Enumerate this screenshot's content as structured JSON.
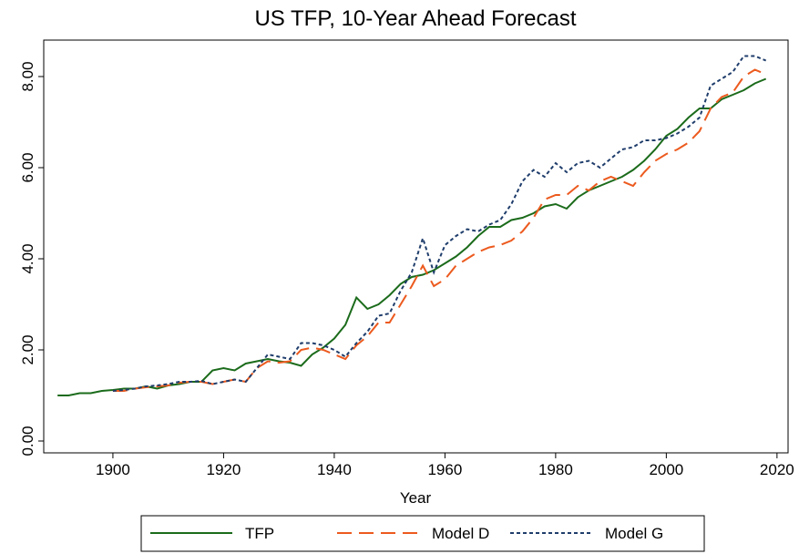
{
  "chart_data": {
    "type": "line",
    "title": "US TFP, 10-Year Ahead Forecast",
    "x_label": "Year",
    "x": [
      1890,
      1892,
      1894,
      1896,
      1898,
      1900,
      1902,
      1904,
      1906,
      1908,
      1910,
      1912,
      1914,
      1916,
      1918,
      1920,
      1922,
      1924,
      1926,
      1928,
      1930,
      1932,
      1934,
      1936,
      1938,
      1940,
      1942,
      1944,
      1946,
      1948,
      1950,
      1952,
      1954,
      1956,
      1958,
      1960,
      1962,
      1964,
      1966,
      1968,
      1970,
      1972,
      1974,
      1976,
      1978,
      1980,
      1982,
      1984,
      1986,
      1988,
      1990,
      1992,
      1994,
      1996,
      1998,
      2000,
      2002,
      2004,
      2006,
      2008,
      2010,
      2012,
      2014,
      2016,
      2018
    ],
    "series": [
      {
        "name": "TFP",
        "color": "#1b6b1b",
        "dash": "none",
        "values": [
          1.0,
          1.0,
          1.05,
          1.05,
          1.1,
          1.12,
          1.15,
          1.15,
          1.2,
          1.15,
          1.22,
          1.25,
          1.3,
          1.3,
          1.55,
          1.6,
          1.55,
          1.7,
          1.75,
          1.8,
          1.75,
          1.72,
          1.65,
          1.9,
          2.05,
          2.25,
          2.55,
          3.15,
          2.9,
          3.0,
          3.2,
          3.45,
          3.6,
          3.65,
          3.75,
          3.9,
          4.05,
          4.25,
          4.5,
          4.7,
          4.7,
          4.85,
          4.9,
          5.0,
          5.15,
          5.2,
          5.1,
          5.35,
          5.5,
          5.6,
          5.7,
          5.8,
          5.95,
          6.15,
          6.4,
          6.7,
          6.85,
          7.1,
          7.3,
          7.3,
          7.5,
          7.6,
          7.7,
          7.85,
          7.95
        ]
      },
      {
        "name": "Model D",
        "color": "#ec5a1e",
        "dash": "16,8",
        "values": [
          null,
          null,
          null,
          null,
          null,
          1.1,
          1.1,
          1.15,
          1.18,
          1.2,
          1.22,
          1.28,
          1.3,
          1.3,
          1.25,
          1.3,
          1.35,
          1.3,
          1.6,
          1.75,
          1.72,
          1.75,
          2.0,
          2.05,
          2.0,
          1.9,
          1.8,
          2.1,
          2.3,
          2.6,
          2.6,
          3.0,
          3.4,
          3.85,
          3.4,
          3.55,
          3.85,
          4.0,
          4.15,
          4.25,
          4.3,
          4.4,
          4.6,
          4.9,
          5.3,
          5.4,
          5.4,
          5.6,
          5.5,
          5.7,
          5.8,
          5.7,
          5.6,
          5.9,
          6.15,
          6.3,
          6.4,
          6.55,
          6.8,
          7.3,
          7.55,
          7.65,
          8.0,
          8.15,
          8.05
        ]
      },
      {
        "name": "Model G",
        "color": "#1f3d6b",
        "dash": "4,3",
        "values": [
          null,
          null,
          null,
          null,
          null,
          1.1,
          1.12,
          1.15,
          1.2,
          1.22,
          1.25,
          1.3,
          1.3,
          1.32,
          1.25,
          1.3,
          1.35,
          1.3,
          1.6,
          1.9,
          1.85,
          1.8,
          2.15,
          2.15,
          2.1,
          2.0,
          1.85,
          2.15,
          2.4,
          2.75,
          2.8,
          3.3,
          3.7,
          4.45,
          3.7,
          4.3,
          4.5,
          4.65,
          4.6,
          4.75,
          4.85,
          5.2,
          5.7,
          5.95,
          5.8,
          6.1,
          5.9,
          6.1,
          6.15,
          6.0,
          6.2,
          6.4,
          6.45,
          6.6,
          6.6,
          6.65,
          6.75,
          6.9,
          7.1,
          7.8,
          7.95,
          8.1,
          8.45,
          8.45,
          8.35
        ]
      }
    ],
    "xlim": [
      1887.5,
      2022
    ],
    "xticks": [
      1900,
      1920,
      1940,
      1960,
      1980,
      2000,
      2020
    ],
    "ylim": [
      -0.26,
      8.8
    ],
    "yticks": [
      {
        "value": 0,
        "label": "0.00"
      },
      {
        "value": 2,
        "label": "2.00"
      },
      {
        "value": 4,
        "label": "4.00"
      },
      {
        "value": 6,
        "label": "6.00"
      },
      {
        "value": 8,
        "label": "8.00"
      }
    ],
    "grid": false,
    "legend": "bottom"
  }
}
